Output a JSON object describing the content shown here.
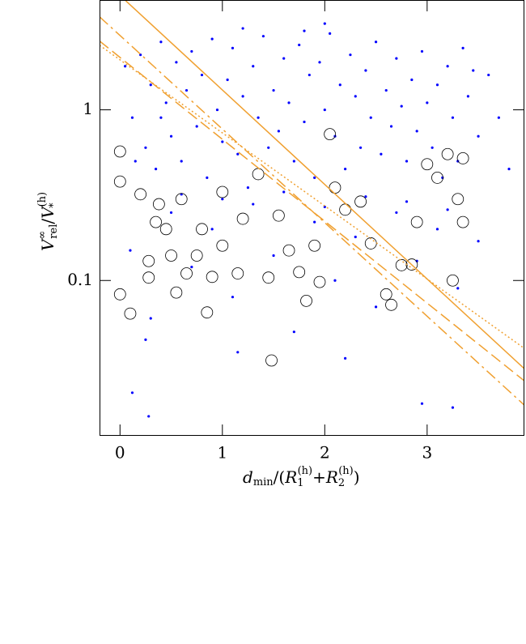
{
  "chart_data": {
    "type": "scatter",
    "xlabel": [
      "d",
      "min",
      "/(",
      "R",
      "1",
      "(h)",
      "+",
      "R",
      "2",
      "(h)",
      ")"
    ],
    "ylabel": [
      "V",
      "∞",
      "rel",
      "/",
      "V",
      "(h)",
      "*"
    ],
    "xlim": [
      -0.2,
      3.95
    ],
    "ylim": [
      0.0123,
      4.4
    ],
    "ylog": true,
    "xticks": [
      0,
      1,
      2,
      3
    ],
    "yticks": [
      0.1,
      1
    ],
    "series": [
      {
        "color": "#0000ff",
        "marker": "dot",
        "x": [
          0.05,
          0.12,
          0.2,
          0.25,
          0.3,
          0.35,
          0.4,
          0.45,
          0.5,
          0.55,
          0.6,
          0.65,
          0.7,
          0.75,
          0.8,
          0.85,
          0.9,
          0.95,
          1.0,
          1.05,
          1.1,
          1.15,
          1.2,
          1.25,
          1.3,
          1.35,
          1.4,
          1.45,
          1.5,
          1.55,
          1.6,
          1.65,
          1.7,
          1.75,
          1.8,
          1.85,
          1.9,
          1.95,
          2.0,
          2.05,
          2.1,
          2.15,
          2.2,
          2.25,
          2.3,
          2.35,
          2.4,
          2.45,
          2.5,
          2.55,
          2.6,
          2.65,
          2.7,
          2.75,
          2.8,
          2.85,
          2.9,
          2.95,
          3.0,
          3.05,
          3.1,
          3.15,
          3.2,
          3.25,
          3.3,
          3.4,
          3.5,
          3.6,
          3.7,
          3.8,
          0.1,
          0.3,
          0.5,
          0.7,
          0.9,
          1.1,
          1.3,
          1.5,
          1.7,
          1.9,
          2.1,
          2.3,
          2.5,
          2.7,
          2.9,
          3.1,
          3.3,
          3.5,
          0.25,
          1.15,
          2.2,
          3.25,
          0.28,
          0.12,
          2.95,
          0.6,
          1.0,
          1.6,
          2.0,
          2.4,
          2.8,
          3.2,
          0.4,
          0.15,
          3.35,
          3.45,
          1.2,
          2.0,
          1.8
        ],
        "values": [
          1.8,
          0.9,
          2.1,
          0.6,
          1.4,
          0.45,
          2.5,
          1.1,
          0.7,
          1.9,
          0.5,
          1.3,
          2.2,
          0.8,
          1.6,
          0.4,
          2.6,
          1.0,
          0.65,
          1.5,
          2.3,
          0.55,
          1.2,
          0.35,
          1.8,
          0.9,
          2.7,
          0.6,
          1.3,
          0.75,
          2.0,
          1.1,
          0.5,
          2.4,
          0.85,
          1.6,
          0.4,
          1.9,
          1.0,
          2.8,
          0.7,
          1.4,
          0.45,
          2.1,
          1.2,
          0.6,
          1.7,
          0.9,
          2.5,
          0.55,
          1.3,
          0.8,
          2.0,
          1.05,
          0.5,
          1.5,
          0.75,
          2.2,
          1.1,
          0.6,
          1.4,
          0.4,
          1.8,
          0.9,
          0.5,
          1.2,
          0.7,
          1.6,
          0.9,
          0.45,
          0.15,
          0.06,
          0.25,
          0.12,
          0.2,
          0.08,
          0.28,
          0.14,
          0.05,
          0.22,
          0.1,
          0.18,
          0.07,
          0.25,
          0.13,
          0.2,
          0.09,
          0.17,
          0.045,
          0.038,
          0.035,
          0.018,
          0.016,
          0.022,
          0.019,
          0.32,
          0.3,
          0.33,
          0.27,
          0.31,
          0.29,
          0.26,
          0.9,
          0.5,
          2.3,
          1.7,
          3.0,
          3.2,
          2.9
        ]
      },
      {
        "color": "#000000",
        "marker": "circle-open",
        "x": [
          0.0,
          0.0,
          0.0,
          0.1,
          0.2,
          0.28,
          0.28,
          0.35,
          0.38,
          0.45,
          0.5,
          0.55,
          0.6,
          0.65,
          0.75,
          0.8,
          0.85,
          0.9,
          1.0,
          1.0,
          1.15,
          1.2,
          1.35,
          1.45,
          1.48,
          1.55,
          1.65,
          1.75,
          1.82,
          1.9,
          1.95,
          2.05,
          2.1,
          2.2,
          2.35,
          2.45,
          2.6,
          2.65,
          2.75,
          2.85,
          2.9,
          3.0,
          3.1,
          3.2,
          3.25,
          3.3,
          3.35,
          3.35
        ],
        "values": [
          0.57,
          0.38,
          0.083,
          0.064,
          0.32,
          0.13,
          0.104,
          0.22,
          0.28,
          0.2,
          0.14,
          0.085,
          0.3,
          0.11,
          0.14,
          0.2,
          0.065,
          0.105,
          0.16,
          0.33,
          0.11,
          0.23,
          0.42,
          0.104,
          0.034,
          0.24,
          0.15,
          0.112,
          0.076,
          0.16,
          0.098,
          0.72,
          0.35,
          0.26,
          0.29,
          0.165,
          0.083,
          0.072,
          0.123,
          0.124,
          0.22,
          0.48,
          0.4,
          0.55,
          0.1,
          0.3,
          0.52,
          0.22
        ]
      },
      {
        "color": "#f0a030",
        "marker": "line",
        "dash": "solid",
        "x": [
          0.055,
          3.95
        ],
        "values": [
          4.36,
          0.0304
        ]
      },
      {
        "color": "#f0a030",
        "marker": "line",
        "dash": "dashdot",
        "x": [
          -0.2,
          3.95
        ],
        "values": [
          3.51,
          0.0186
        ]
      },
      {
        "color": "#f0a030",
        "marker": "line",
        "dash": "dashed",
        "x": [
          -0.2,
          3.95
        ],
        "values": [
          2.53,
          0.0258
        ]
      },
      {
        "color": "#f0a030",
        "marker": "line",
        "dash": "dotted",
        "x": [
          -0.2,
          3.95
        ],
        "values": [
          2.39,
          0.04
        ]
      }
    ]
  }
}
